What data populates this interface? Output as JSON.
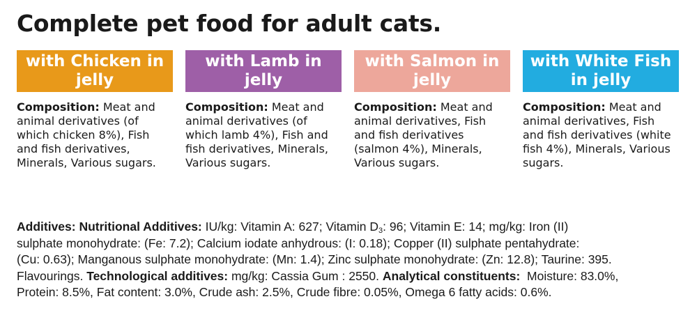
{
  "title": "Complete pet food for adult cats.",
  "colors": {
    "chicken": "#e8991a",
    "lamb": "#9e5fa7",
    "salmon": "#eda79b",
    "white_fish": "#22ace0"
  },
  "variants": [
    {
      "banner": "with Chicken in jelly",
      "composition_label": "Composition:",
      "composition_text": " Meat and animal derivatives (of which chicken 8%), Fish and fish derivatives, Minerals, Various sugars."
    },
    {
      "banner": "with Lamb in jelly",
      "composition_label": "Composition:",
      "composition_text": " Meat and animal derivatives (of which lamb 4%), Fish and fish derivatives, Minerals, Various sugars."
    },
    {
      "banner": "with Salmon in jelly",
      "composition_label": "Composition:",
      "composition_text": " Meat and animal derivatives, Fish and fish derivatives (salmon 4%), Minerals, Various sugars."
    },
    {
      "banner": "with White Fish in jelly",
      "composition_label": "Composition:",
      "composition_text": " Meat and animal derivatives, Fish and fish derivatives (white fish 4%), Minerals, Various sugars."
    }
  ],
  "additives": {
    "l1_label": "Additives: Nutritional Additives:",
    "l1_text_a": " IU/kg: Vitamin A: 627; Vitamin D",
    "l1_sub": "3",
    "l1_text_b": ": 96; Vitamin E: 14; mg/kg: Iron (II)",
    "l2_text": "sulphate monohydrate: (Fe: 7.2); Calcium iodate anhydrous: (I: 0.18); Copper (II) sulphate pentahydrate:",
    "l3_text": "(Cu: 0.63); Manganous sulphate monohydrate: (Mn: 1.4); Zinc sulphate monohydrate: (Zn: 12.8); Taurine: 395.",
    "l4_text_a": "Flavourings. ",
    "l4_label_b": "Technological additives:",
    "l4_text_b": " mg/kg: Cassia Gum : 2550. ",
    "l4_label_c": "Analytical constituents:",
    "l4_text_c": "  Moisture: 83.0%,",
    "l5_text": "Protein: 8.5%, Fat content: 3.0%, Crude ash: 2.5%, Crude fibre: 0.05%, Omega 6 fatty acids: 0.6%."
  }
}
